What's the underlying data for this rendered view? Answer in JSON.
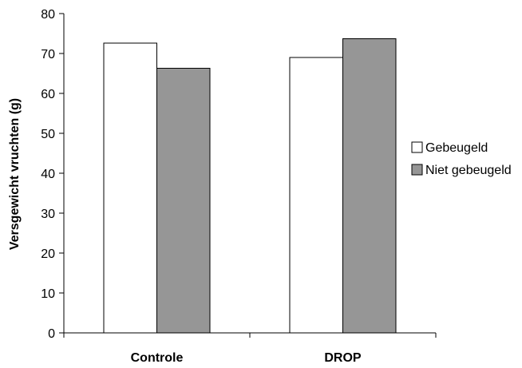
{
  "chart_data": {
    "type": "bar",
    "categories": [
      "Controle",
      "DROP"
    ],
    "series": [
      {
        "name": "Gebeugeld",
        "values": [
          72.6,
          69.0
        ],
        "color": "#ffffff"
      },
      {
        "name": "Niet gebeugeld",
        "values": [
          66.3,
          73.7
        ],
        "color": "#969696"
      }
    ],
    "title": "",
    "xlabel": "",
    "ylabel": "Versgewicht vruchten (g)",
    "ylim": [
      0,
      80
    ],
    "yticks": [
      0,
      10,
      20,
      30,
      40,
      50,
      60,
      70,
      80
    ],
    "grid": false,
    "legend_position": "right"
  }
}
